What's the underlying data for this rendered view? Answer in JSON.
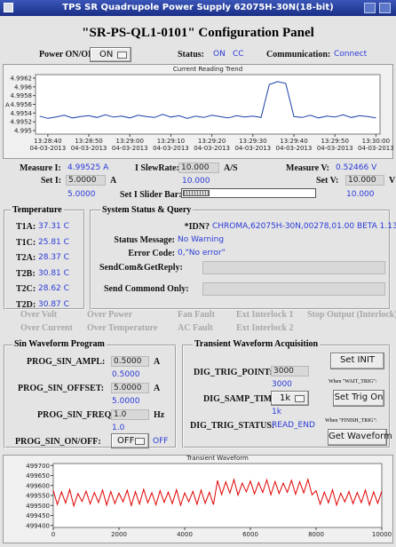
{
  "title_bar": {
    "title": "TPS SR Quadrupole Power Supply 62075H-30N(18-bit)"
  },
  "header": {
    "title": "\"SR-PS-QL1-0101\" Configuration Panel"
  },
  "status_row": {
    "power_label": "Power ON/OFF:",
    "power_button": "ON",
    "status_label": "Status:",
    "status": "ON",
    "mode": "CC",
    "comm_label": "Communication:",
    "comm": "Connect"
  },
  "trend_chart": {
    "type": "line",
    "title": "Current Reading Trend",
    "y_label": "A",
    "color": "#1a3fa8",
    "x": [
      -2,
      0,
      2,
      4,
      6,
      8,
      10,
      12,
      14,
      16,
      18,
      20,
      22,
      24,
      26,
      28,
      30,
      32,
      34,
      36,
      38,
      40,
      42,
      44,
      46,
      48,
      50,
      52,
      54,
      56,
      58,
      60,
      62,
      64,
      66,
      68,
      70,
      72,
      74,
      76,
      78,
      80
    ],
    "values": [
      4.99533,
      4.99528,
      4.99531,
      4.99535,
      4.99529,
      4.99532,
      4.99534,
      4.9953,
      4.99536,
      4.99531,
      4.99533,
      4.99529,
      4.99535,
      4.99532,
      4.9953,
      4.99537,
      4.99531,
      4.99534,
      4.99528,
      4.99533,
      4.9953,
      4.99535,
      4.99532,
      4.99529,
      4.99534,
      4.99531,
      4.99533,
      4.9953,
      4.99605,
      4.99612,
      4.99608,
      4.99532,
      4.9953,
      4.99535,
      4.99529,
      4.99533,
      4.99531,
      4.99536,
      4.9953,
      4.99534,
      4.99532,
      4.99529
    ],
    "xlim": [
      -3,
      81
    ],
    "ylim": [
      4.99492,
      4.99628
    ],
    "yticks": [
      4.9962,
      4.996,
      4.9958,
      4.9956,
      4.9954,
      4.9952,
      4.995
    ],
    "xticks": [
      {
        "value": 0,
        "label": "13:28:40"
      },
      {
        "value": 10,
        "label": "13:28:50"
      },
      {
        "value": 20,
        "label": "13:29:00"
      },
      {
        "value": 30,
        "label": "13:29:10"
      },
      {
        "value": 40,
        "label": "13:29:20"
      },
      {
        "value": 50,
        "label": "13:29:30"
      },
      {
        "value": 60,
        "label": "13:29:40"
      },
      {
        "value": 70,
        "label": "13:29:50"
      },
      {
        "value": 80,
        "label": "13:30:00"
      }
    ],
    "xtick_dates": [
      "04-03-2013",
      "04-03-2013",
      "04-03-2013",
      "04-03-2013",
      "04-03-2013",
      "04-03-2013",
      "04-03-2013",
      "04-03-2013",
      "04-03-2013"
    ]
  },
  "readings": {
    "measure_i_label": "Measure I:",
    "measure_i": "4.99525 A",
    "slew_label": "I SlewRate:",
    "slew_input": "10.000",
    "slew_unit": "A/S",
    "slew_rb": "10.000",
    "measure_v_label": "Measure V:",
    "measure_v": "0.52466 V",
    "set_i_label": "Set I:",
    "set_i_input": "5.0000",
    "set_i_unit": "A",
    "set_i_rb": "5.0000",
    "set_v_label": "Set V:",
    "set_v_input": "10.000",
    "set_v_unit": "V",
    "set_v_rb": "10.000",
    "slider_label": "Set I Slider Bar:"
  },
  "temperature": {
    "title": "Temperature",
    "items": [
      {
        "label": "T1A:",
        "value": "37.31 C"
      },
      {
        "label": "T1C:",
        "value": "25.81 C"
      },
      {
        "label": "T2A:",
        "value": "28.37 C"
      },
      {
        "label": "T2B:",
        "value": "30.81 C"
      },
      {
        "label": "T2C:",
        "value": "28.62 C"
      },
      {
        "label": "T2D:",
        "value": "30.87 C"
      }
    ]
  },
  "system_status": {
    "title": "System Status & Query",
    "rows": [
      {
        "label": "*IDN?",
        "value": "CHROMA,62075H-30N,00278,01.00 BETA 1.13"
      },
      {
        "label": "Status Message:",
        "value": "No Warning"
      },
      {
        "label": "Error Code:",
        "value": "0,\"No error\""
      }
    ],
    "inputs": [
      "SendCom&GetReply:",
      "Send Commond Only:"
    ]
  },
  "faults": [
    [
      "Over Volt",
      "Over Power",
      "Fan Fault",
      "Ext Interlock 1",
      "Stop Output (Interlock)"
    ],
    [
      "Over Current",
      "Over Temperature",
      "AC Fault",
      "Ext Interlock 2"
    ]
  ],
  "sin_program": {
    "title": "Sin Waveform Program",
    "rows": [
      {
        "label": "PROG_SIN_AMPL:",
        "input": "0.5000",
        "unit": "A",
        "readback": "0.5000"
      },
      {
        "label": "PROG_SIN_OFFSET:",
        "input": "5.0000",
        "unit": "A",
        "readback": "5.0000"
      },
      {
        "label": "PROG_SIN_FREQ:",
        "input": "1.0",
        "unit": "Hz",
        "readback": "1.0"
      }
    ],
    "onoff_label": "PROG_SIN_ON/OFF:",
    "onoff_button": "OFF",
    "onoff_rb": "OFF"
  },
  "transient_acq": {
    "title": "Transient Waveform Acquisition",
    "trig_point_label": "DIG_TRIG_POINT:",
    "trig_point": "3000",
    "trig_point_rb": "3000",
    "samp_label": "DIG_SAMP_TIME:",
    "samp": "1k",
    "samp_rb": "1k",
    "status_label": "DIG_TRIG_STATUS:",
    "status": "READ_END",
    "set_init": "Set INIT",
    "wait_note": "When \"WAIT_TRIG\":",
    "set_trig": "Set Trig On",
    "finish_note": "When \"FINISH_TRIG\":",
    "get_waveform": "Get Waveform"
  },
  "waveform_chart": {
    "type": "line",
    "title": "Transient Waveform",
    "color": "#e00000",
    "x": [
      0,
      125,
      250,
      375,
      500,
      625,
      750,
      875,
      1000,
      1125,
      1250,
      1375,
      1500,
      1625,
      1750,
      1875,
      2000,
      2125,
      2250,
      2375,
      2500,
      2625,
      2750,
      2875,
      3000,
      3125,
      3250,
      3375,
      3500,
      3625,
      3750,
      3875,
      4000,
      4125,
      4250,
      4375,
      4500,
      4625,
      4750,
      4875,
      5000,
      5125,
      5250,
      5375,
      5500,
      5625,
      5750,
      5875,
      6000,
      6125,
      6250,
      6375,
      6500,
      6625,
      6750,
      6875,
      7000,
      7125,
      7250,
      7375,
      7500,
      7625,
      7750,
      7875,
      8000,
      8125,
      8250,
      8375,
      8500,
      8625,
      8750,
      8875,
      9000,
      9125,
      9250,
      9375,
      9500,
      9625,
      9750,
      9875,
      10000
    ],
    "values": [
      499575,
      499505,
      499568,
      499512,
      499580,
      499498,
      499560,
      499520,
      499572,
      499508,
      499565,
      499515,
      499578,
      499502,
      499570,
      499510,
      499562,
      499518,
      499576,
      499500,
      499569,
      499507,
      499581,
      499513,
      499564,
      499503,
      499574,
      499516,
      499567,
      499509,
      499579,
      499501,
      499563,
      499519,
      499571,
      499506,
      499577,
      499511,
      499566,
      499504,
      499625,
      499555,
      499618,
      499562,
      499630,
      499552,
      499612,
      499568,
      499622,
      499558,
      499615,
      499565,
      499628,
      499554,
      499620,
      499560,
      499612,
      499566,
      499626,
      499556,
      499619,
      499563,
      499631,
      499553,
      499574,
      499506,
      499567,
      499513,
      499579,
      499502,
      499562,
      499518,
      499570,
      499509,
      499565,
      499514,
      499577,
      499503,
      499568,
      499511,
      499572
    ],
    "xlim": [
      0,
      10000
    ],
    "ylim": [
      499390,
      499710
    ],
    "yticks": [
      499700,
      499650,
      499600,
      499550,
      499500,
      499450,
      499400
    ],
    "xticks": [
      0,
      2000,
      4000,
      6000,
      8000,
      10000
    ]
  }
}
